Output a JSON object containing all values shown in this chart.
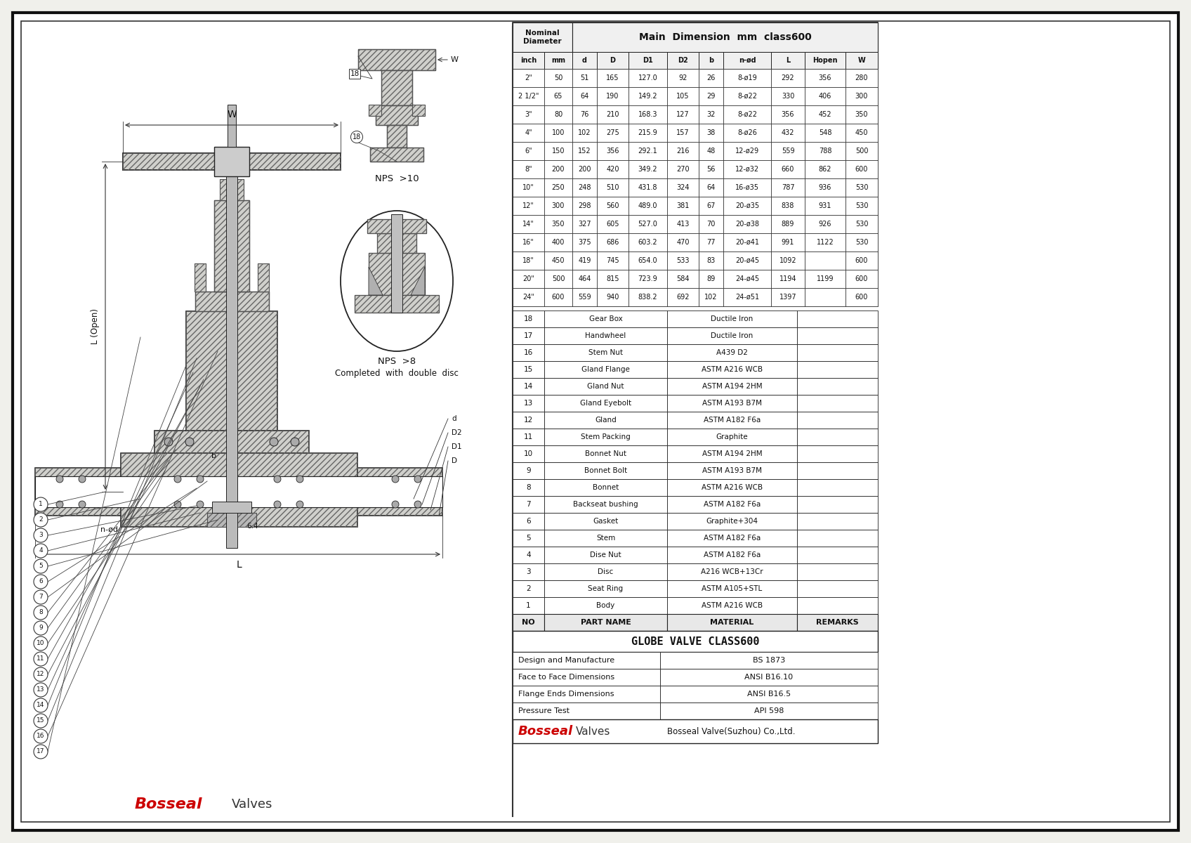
{
  "bg_color": "#f0f0eb",
  "title": "GLOBE VALVE CLASS600",
  "company": "Bosseal Valve(Suzhou) Co.,Ltd.",
  "standards": [
    [
      "Design and Manufacture",
      "BS 1873"
    ],
    [
      "Face to Face Dimensions",
      "ANSI B16.10"
    ],
    [
      "Flange Ends Dimensions",
      "ANSI B16.5"
    ],
    [
      "Pressure Test",
      "API 598"
    ]
  ],
  "bom_headers": [
    "NO",
    "PART NAME",
    "MATERIAL",
    "REMARKS"
  ],
  "bom_rows": [
    [
      "18",
      "Gear Box",
      "Ductile Iron",
      ""
    ],
    [
      "17",
      "Handwheel",
      "Ductile Iron",
      ""
    ],
    [
      "16",
      "Stem Nut",
      "A439 D2",
      ""
    ],
    [
      "15",
      "Gland Flange",
      "ASTM A216 WCB",
      ""
    ],
    [
      "14",
      "Gland Nut",
      "ASTM A194 2HM",
      ""
    ],
    [
      "13",
      "Gland Eyebolt",
      "ASTM A193 B7M",
      ""
    ],
    [
      "12",
      "Gland",
      "ASTM A182 F6a",
      ""
    ],
    [
      "11",
      "Stem Packing",
      "Graphite",
      ""
    ],
    [
      "10",
      "Bonnet Nut",
      "ASTM A194 2HM",
      ""
    ],
    [
      "9",
      "Bonnet Bolt",
      "ASTM A193 B7M",
      ""
    ],
    [
      "8",
      "Bonnet",
      "ASTM A216 WCB",
      ""
    ],
    [
      "7",
      "Backseat bushing",
      "ASTM A182 F6a",
      ""
    ],
    [
      "6",
      "Gasket",
      "Graphite+304",
      ""
    ],
    [
      "5",
      "Stem",
      "ASTM A182 F6a",
      ""
    ],
    [
      "4",
      "Dise Nut",
      "ASTM A182 F6a",
      ""
    ],
    [
      "3",
      "Disc",
      "A216 WCB+13Cr",
      ""
    ],
    [
      "2",
      "Seat Ring",
      "ASTM A105+STL",
      ""
    ],
    [
      "1",
      "Body",
      "ASTM A216 WCB",
      ""
    ]
  ],
  "bom_footer": [
    "NO",
    "PART NAME",
    "MATERIAL",
    "REMARKS"
  ],
  "dim_subheaders": [
    "inch",
    "mm",
    "d",
    "D",
    "D1",
    "D2",
    "b",
    "n-ød",
    "L",
    "Hopen",
    "W"
  ],
  "dim_rows": [
    [
      "2\"",
      "50",
      "51",
      "165",
      "127.0",
      "92",
      "26",
      "8-ø19",
      "292",
      "356",
      "280"
    ],
    [
      "2 1/2\"",
      "65",
      "64",
      "190",
      "149.2",
      "105",
      "29",
      "8-ø22",
      "330",
      "406",
      "300"
    ],
    [
      "3\"",
      "80",
      "76",
      "210",
      "168.3",
      "127",
      "32",
      "8-ø22",
      "356",
      "452",
      "350"
    ],
    [
      "4\"",
      "100",
      "102",
      "275",
      "215.9",
      "157",
      "38",
      "8-ø26",
      "432",
      "548",
      "450"
    ],
    [
      "6\"",
      "150",
      "152",
      "356",
      "292.1",
      "216",
      "48",
      "12-ø29",
      "559",
      "788",
      "500"
    ],
    [
      "8\"",
      "200",
      "200",
      "420",
      "349.2",
      "270",
      "56",
      "12-ø32",
      "660",
      "862",
      "600"
    ],
    [
      "10\"",
      "250",
      "248",
      "510",
      "431.8",
      "324",
      "64",
      "16-ø35",
      "787",
      "936",
      "530"
    ],
    [
      "12\"",
      "300",
      "298",
      "560",
      "489.0",
      "381",
      "67",
      "20-ø35",
      "838",
      "931",
      "530"
    ],
    [
      "14\"",
      "350",
      "327",
      "605",
      "527.0",
      "413",
      "70",
      "20-ø38",
      "889",
      "926",
      "530"
    ],
    [
      "16\"",
      "400",
      "375",
      "686",
      "603.2",
      "470",
      "77",
      "20-ø41",
      "991",
      "1122",
      "530"
    ],
    [
      "18\"",
      "450",
      "419",
      "745",
      "654.0",
      "533",
      "83",
      "20-ø45",
      "1092",
      "",
      "600"
    ],
    [
      "20\"",
      "500",
      "464",
      "815",
      "723.9",
      "584",
      "89",
      "24-ø45",
      "1194",
      "1199",
      "600"
    ],
    [
      "24\"",
      "600",
      "559",
      "940",
      "838.2",
      "692",
      "102",
      "24-ø51",
      "1397",
      "",
      "600"
    ]
  ]
}
